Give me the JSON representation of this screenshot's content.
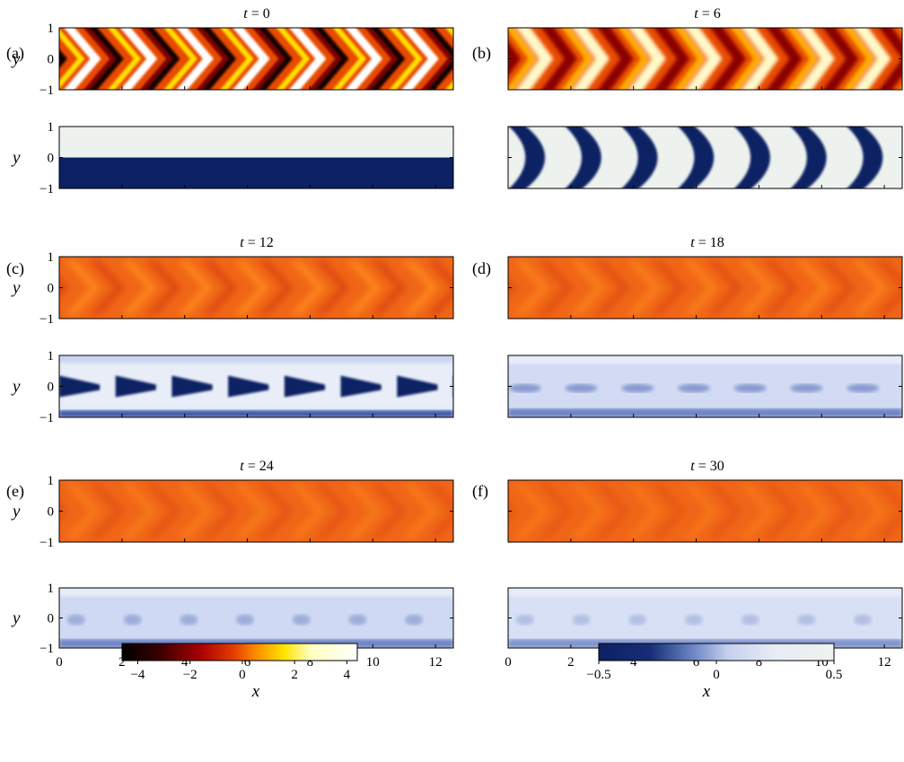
{
  "chart_data": {
    "type": "heatmap",
    "x_label": "x",
    "y_label": "y",
    "x_ticks": [
      0,
      2,
      4,
      6,
      8,
      10,
      12
    ],
    "y_ticks": [
      1,
      0,
      -1
    ],
    "xlim": [
      0,
      12.57
    ],
    "ylim": [
      -1,
      1
    ],
    "panels": [
      {
        "label": "(a)",
        "title_var": "t",
        "title_eq": " = ",
        "t": "0",
        "pattern": "initial"
      },
      {
        "label": "(b)",
        "title_var": "t",
        "title_eq": " = ",
        "t": "6",
        "pattern": "roll"
      },
      {
        "label": "(c)",
        "title_var": "t",
        "title_eq": " = ",
        "t": "12",
        "pattern": "fold"
      },
      {
        "label": "(d)",
        "title_var": "t",
        "title_eq": " = ",
        "t": "18",
        "pattern": "wave"
      },
      {
        "label": "(e)",
        "title_var": "t",
        "title_eq": " = ",
        "t": "24",
        "pattern": "blob"
      },
      {
        "label": "(f)",
        "title_var": "t",
        "title_eq": " = ",
        "t": "30",
        "pattern": "faint"
      }
    ],
    "colorbars": [
      {
        "field": "vorticity",
        "colormap": "hot",
        "ticks": [
          "−4",
          "−2",
          "0",
          "2",
          "4"
        ],
        "tick_values": [
          -4,
          -2,
          0,
          2,
          4
        ],
        "range": [
          -4.6,
          4.4
        ]
      },
      {
        "field": "scalar",
        "colormap": "blue-white",
        "ticks": [
          "−0.5",
          "0",
          "0.5"
        ],
        "tick_values": [
          -0.5,
          0,
          0.5
        ],
        "range": [
          -0.5,
          0.5
        ]
      }
    ],
    "colors": {
      "hot": [
        "#000000",
        "#4a0000",
        "#b40000",
        "#e63e00",
        "#ff9800",
        "#ffe800",
        "#ffffc8",
        "#ffffff"
      ],
      "blue": [
        "#0c2164",
        "#1d3a82",
        "#6c86c4",
        "#bccbed",
        "#e6ecf8",
        "#eef2ee"
      ],
      "hot_bg": "#f06618",
      "blue_bg": "#d5ddf4"
    }
  }
}
